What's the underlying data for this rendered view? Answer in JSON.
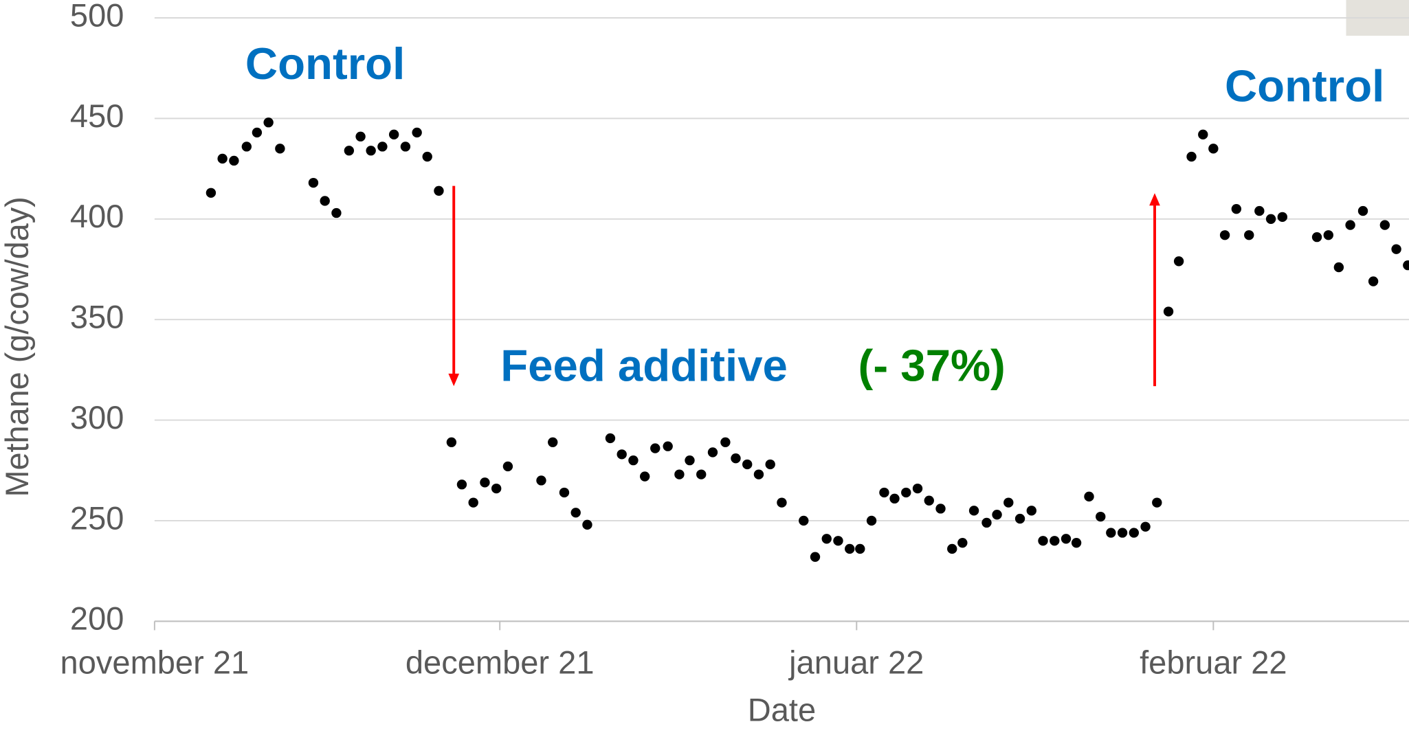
{
  "chart_data": {
    "type": "scatter",
    "xlabel": "Date",
    "ylabel": "Methane (g/cow/day)",
    "color": "#000000",
    "grid": true,
    "xlim": [
      0,
      109
    ],
    "xticks": [
      {
        "value": 0,
        "label": "november 21"
      },
      {
        "value": 30,
        "label": "december 21"
      },
      {
        "value": 61,
        "label": "januar 22"
      },
      {
        "value": 92,
        "label": "februar 22"
      }
    ],
    "ylim": [
      200,
      500
    ],
    "yticks": [
      200,
      250,
      300,
      350,
      400,
      450,
      500
    ],
    "x": [
      4.9,
      5.9,
      6.9,
      8.0,
      8.9,
      9.9,
      10.9,
      13.8,
      14.8,
      15.8,
      16.9,
      17.9,
      18.8,
      19.8,
      20.8,
      21.8,
      22.8,
      23.7,
      24.7,
      25.8,
      26.7,
      27.7,
      28.7,
      29.7,
      30.7,
      33.6,
      34.6,
      35.6,
      36.6,
      37.6,
      39.6,
      40.6,
      41.6,
      42.6,
      43.5,
      44.6,
      45.6,
      46.5,
      47.5,
      48.5,
      49.6,
      50.5,
      51.5,
      52.5,
      53.5,
      54.5,
      56.4,
      57.4,
      58.4,
      59.4,
      60.4,
      61.3,
      62.3,
      63.4,
      64.3,
      65.3,
      66.3,
      67.3,
      68.3,
      69.3,
      70.2,
      71.2,
      72.3,
      73.2,
      74.2,
      75.2,
      76.2,
      77.2,
      78.2,
      79.2,
      80.1,
      81.2,
      82.2,
      83.1,
      84.1,
      85.1,
      86.1,
      87.1,
      88.1,
      89.0,
      90.1,
      91.1,
      92.0,
      93.0,
      94.0,
      95.1,
      96.0,
      97.0,
      98.0,
      101.0,
      102.0,
      102.9,
      103.9,
      105.0,
      105.9,
      106.9,
      107.9,
      108.9
    ],
    "values": [
      413,
      430,
      429,
      436,
      443,
      448,
      435,
      418,
      409,
      403,
      434,
      441,
      434,
      436,
      442,
      436,
      443,
      431,
      414,
      289,
      268,
      259,
      269,
      266,
      277,
      270,
      289,
      264,
      254,
      248,
      291,
      283,
      280,
      272,
      286,
      287,
      273,
      280,
      273,
      284,
      289,
      281,
      278,
      273,
      278,
      259,
      250,
      232,
      241,
      240,
      236,
      236,
      250,
      264,
      261,
      264,
      266,
      260,
      256,
      236,
      239,
      255,
      249,
      253,
      259,
      251,
      255,
      240,
      240,
      241,
      239,
      262,
      252,
      244,
      244,
      244,
      247,
      259,
      354,
      379,
      431,
      442,
      435,
      392,
      405,
      392,
      404,
      400,
      401,
      391,
      392,
      376,
      397,
      404,
      369,
      397,
      385,
      377
    ],
    "annotations": [
      {
        "text": "Control",
        "color": "#0070c0"
      },
      {
        "text": "Control",
        "color": "#0070c0"
      },
      {
        "text": "Feed additive",
        "color": "#0070c0"
      },
      {
        "text": "(- 37%)",
        "color": "#008000"
      }
    ]
  }
}
